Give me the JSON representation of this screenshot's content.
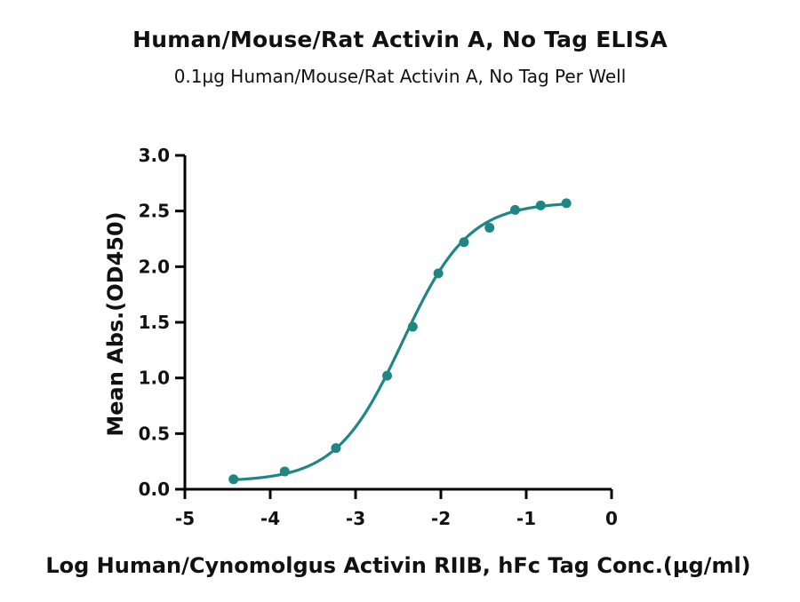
{
  "chart_data": {
    "type": "scatter",
    "title": "Human/Mouse/Rat Activin A, No Tag ELISA",
    "subtitle": "0.1µg Human/Mouse/Rat Activin A, No Tag Per Well",
    "xlabel": "Log Human/Cynomolgus Activin RIIB, hFc Tag Conc.(µg/ml)",
    "ylabel": "Mean Abs.(OD450)",
    "xlim": [
      -5,
      0
    ],
    "ylim": [
      0,
      3.0
    ],
    "xticks": [
      -5,
      -4,
      -3,
      -2,
      -1,
      0
    ],
    "xtick_labels": [
      "-5",
      "-4",
      "-3",
      "-2",
      "-1",
      "0"
    ],
    "yticks": [
      0,
      0.5,
      1.0,
      1.5,
      2.0,
      2.5,
      3.0
    ],
    "ytick_labels": [
      "0.0",
      "0.5",
      "1.0",
      "1.5",
      "2.0",
      "2.5",
      "3.0"
    ],
    "grid": false,
    "color": "#1f8585",
    "series": [
      {
        "x": [
          -4.43,
          -3.83,
          -3.23,
          -2.63,
          -2.33,
          -2.03,
          -1.73,
          -1.43,
          -1.13,
          -0.83,
          -0.53
        ],
        "y": [
          0.09,
          0.16,
          0.37,
          1.02,
          1.46,
          1.94,
          2.22,
          2.35,
          2.51,
          2.55,
          2.57
        ]
      }
    ],
    "fit": {
      "type": "4PL",
      "bottom": 0.07,
      "top": 2.58,
      "log_ec50": -2.45,
      "hill": 1.12,
      "x_range": [
        -4.43,
        -0.53
      ]
    }
  }
}
